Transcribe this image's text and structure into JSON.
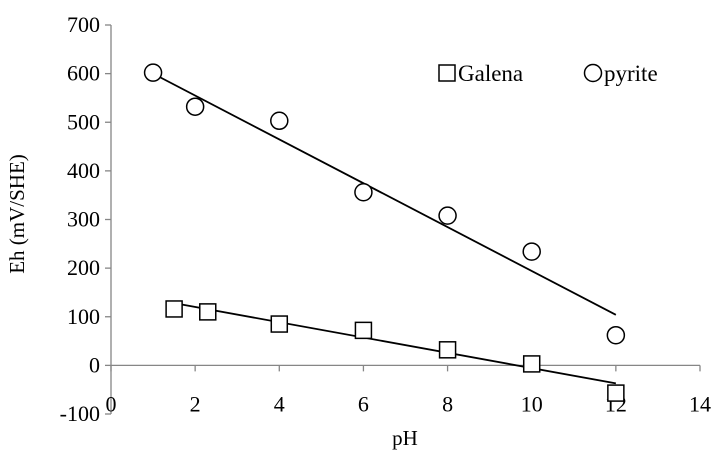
{
  "chart_data": {
    "type": "scatter",
    "title": "",
    "xlabel": "pH",
    "ylabel": "Eh (mV/SHE)",
    "xlim": [
      0,
      14
    ],
    "ylim": [
      -100,
      700
    ],
    "xticks": [
      0,
      2,
      4,
      6,
      8,
      10,
      12,
      14
    ],
    "yticks": [
      -100,
      0,
      100,
      200,
      300,
      400,
      500,
      600,
      700
    ],
    "xtick_labels": [
      "0",
      "2",
      "4",
      "6",
      "8",
      "10",
      "12",
      "14"
    ],
    "ytick_labels": [
      "-100",
      "0",
      "100",
      "200",
      "300",
      "400",
      "500",
      "600",
      "700"
    ],
    "grid": false,
    "legend_position": "top-right",
    "series": [
      {
        "name": "Galena",
        "marker": "square",
        "x": [
          1.5,
          2.3,
          4,
          6,
          8,
          10,
          12
        ],
        "y": [
          116,
          110,
          85,
          72,
          32,
          3,
          -57
        ],
        "trendline": {
          "x": [
            1.5,
            12
          ],
          "y": [
            128,
            -37
          ]
        }
      },
      {
        "name": "pyrite",
        "marker": "circle",
        "x": [
          1,
          2,
          4,
          6,
          8,
          10,
          12
        ],
        "y": [
          602,
          532,
          503,
          356,
          308,
          234,
          62
        ],
        "trendline": {
          "x": [
            1,
            12
          ],
          "y": [
            600,
            104
          ]
        }
      }
    ]
  }
}
